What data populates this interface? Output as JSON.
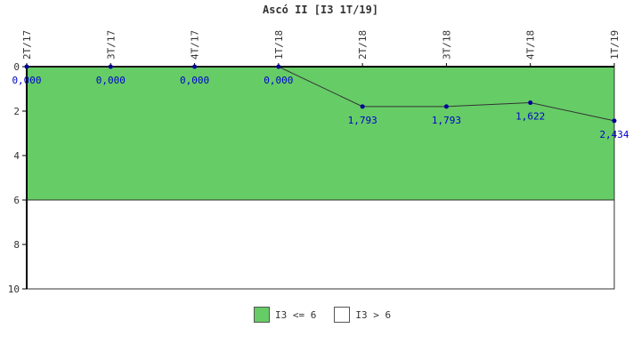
{
  "chart_data": {
    "type": "line",
    "title": "Ascó II [I3 1T/19]",
    "categories": [
      "2T/17",
      "3T/17",
      "4T/17",
      "1T/18",
      "2T/18",
      "3T/18",
      "4T/18",
      "1T/19"
    ],
    "series": [
      {
        "values": [
          0.0,
          0.0,
          0.0,
          0.0,
          1.793,
          1.793,
          1.622,
          2.434
        ]
      }
    ],
    "data_labels": [
      "0,000",
      "0,000",
      "0,000",
      "0,000",
      "1,793",
      "1,793",
      "1,622",
      "2,434"
    ],
    "y_ticks": [
      "0",
      "2",
      "4",
      "6",
      "8",
      "10"
    ],
    "ylim": [
      0,
      10
    ],
    "y_inverted": true,
    "bands": [
      {
        "label": "I3 <= 6",
        "from": 0,
        "to": 6,
        "color": "#66cc66"
      },
      {
        "label": "I3 > 6",
        "from": 6,
        "to": 10,
        "color": "#ffffff"
      }
    ],
    "line_color": "#333333",
    "marker_color": "#000099",
    "label_color": "#0000cc",
    "legend_position": "bottom"
  }
}
